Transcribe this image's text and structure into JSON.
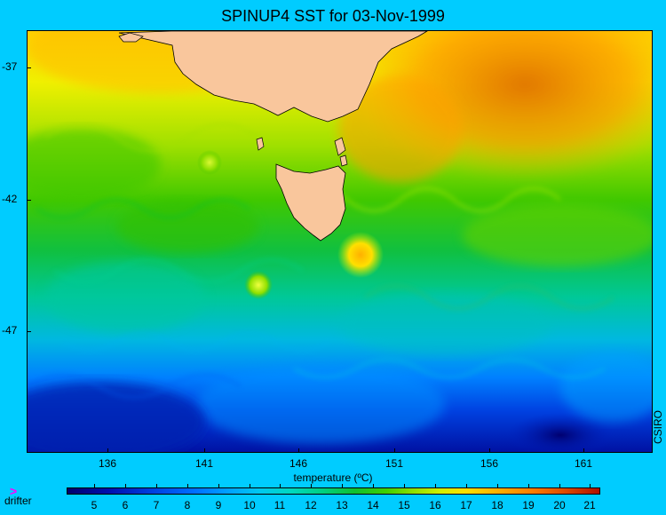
{
  "title": "SPINUP4 SST for 03-Nov-1999",
  "credit": "CSIRO",
  "legend": {
    "marker": ">",
    "label": "drifter"
  },
  "axes": {
    "y_labels": [
      "-37",
      "-42",
      "-47"
    ],
    "x_labels": [
      "136",
      "141",
      "146",
      "151",
      "156",
      "161"
    ]
  },
  "colorbar": {
    "title": "temperature (ºC)",
    "labels": [
      "5",
      "6",
      "7",
      "8",
      "9",
      "10",
      "11",
      "12",
      "13",
      "14",
      "15",
      "16",
      "17",
      "18",
      "19",
      "20",
      "21"
    ]
  },
  "colors": {
    "background": "#00ccff",
    "land": "#f9c69c",
    "drifter": "#ff00ff"
  }
}
